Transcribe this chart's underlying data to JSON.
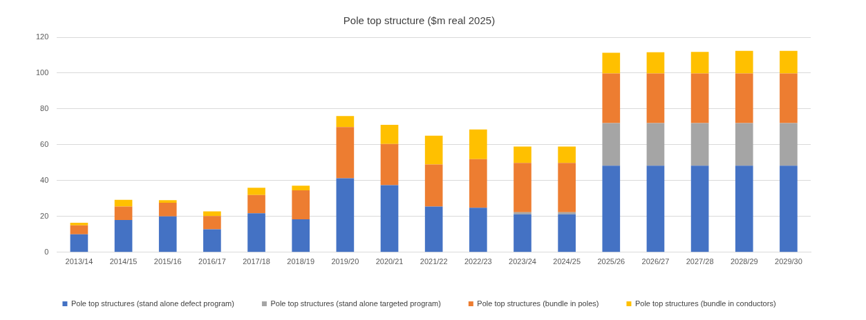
{
  "chart_data": {
    "type": "bar",
    "title": "Pole top structure ($m real 2025)",
    "stacked": true,
    "grid": "y",
    "legend": "bottom",
    "categories": [
      "2013/14",
      "2014/15",
      "2015/16",
      "2016/17",
      "2017/18",
      "2018/19",
      "2019/20",
      "2020/21",
      "2021/22",
      "2022/23",
      "2023/24",
      "2024/25",
      "2025/26",
      "2026/27",
      "2027/28",
      "2028/29",
      "2029/30"
    ],
    "ylim": [
      0,
      120
    ],
    "yticks": [
      0,
      20,
      40,
      60,
      80,
      100,
      120
    ],
    "series": [
      {
        "name": "Pole top structures (stand alone defect program)",
        "color": "#4472c4",
        "values": [
          10,
          18,
          20,
          12.8,
          21.8,
          18.4,
          41.3,
          37.4,
          25.5,
          24.8,
          21.2,
          21.2,
          48.3,
          48.3,
          48.3,
          48.3,
          48.3
        ]
      },
      {
        "name": "Pole top structures (stand alone targeted program)",
        "color": "#a5a5a5",
        "values": [
          null,
          null,
          null,
          null,
          null,
          null,
          null,
          null,
          null,
          null,
          1.1,
          1.1,
          23.8,
          23.8,
          23.8,
          23.8,
          23.8
        ]
      },
      {
        "name": "Pole top structures (bundle in poles)",
        "color": "#ed7d31",
        "values": [
          5,
          7.5,
          7.6,
          7.4,
          10.2,
          16.2,
          28.6,
          23,
          23.5,
          27.2,
          27.6,
          27.6,
          27.7,
          27.7,
          27.7,
          27.7,
          27.7
        ]
      },
      {
        "name": "Pole top structures (bundle in conductors)",
        "color": "#ffc000",
        "values": [
          1.5,
          3.8,
          1.5,
          2.6,
          4,
          2.6,
          6.1,
          10.7,
          16.1,
          16.5,
          9.1,
          9.1,
          11.5,
          11.8,
          12,
          12.6,
          12.6
        ]
      }
    ]
  }
}
